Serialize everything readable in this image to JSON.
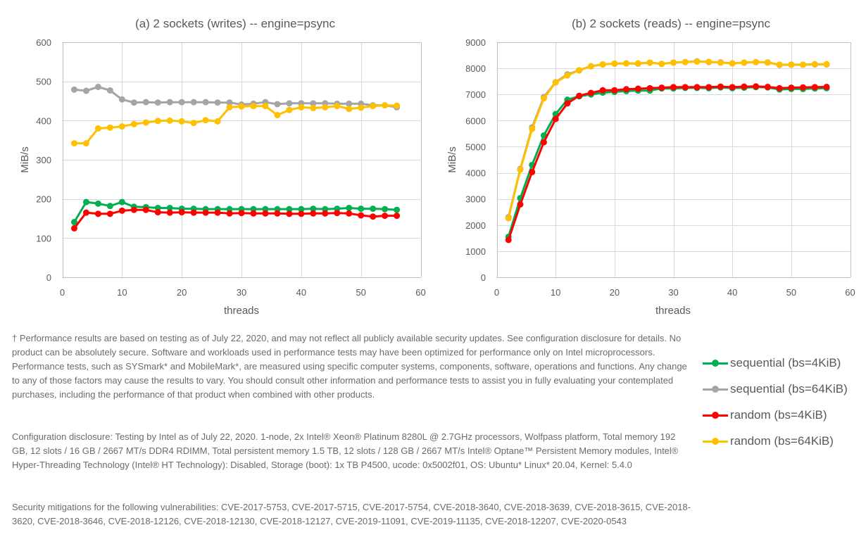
{
  "chart_data": [
    {
      "type": "line",
      "title": "(a) 2 sockets (writes) -- engine=psync",
      "xlabel": "threads",
      "ylabel": "MiB/s",
      "xlim": [
        0,
        60
      ],
      "ylim": [
        0,
        600
      ],
      "x_ticks": [
        0,
        10,
        20,
        30,
        40,
        50,
        60
      ],
      "y_ticks": [
        0,
        100,
        200,
        300,
        400,
        500,
        600
      ],
      "grid": true,
      "x": [
        2,
        4,
        6,
        8,
        10,
        12,
        14,
        16,
        18,
        20,
        22,
        24,
        26,
        28,
        30,
        32,
        34,
        36,
        38,
        40,
        42,
        44,
        46,
        48,
        50,
        52,
        54,
        56
      ],
      "series": [
        {
          "name": "sequential (bs=4KiB)",
          "color": "#00b050",
          "values": [
            141,
            192,
            188,
            182,
            192,
            180,
            179,
            177,
            177,
            175,
            175,
            174,
            174,
            174,
            174,
            174,
            174,
            174,
            174,
            174,
            175,
            174,
            175,
            177,
            175,
            175,
            174,
            172
          ]
        },
        {
          "name": "sequential (bs=64KiB)",
          "color": "#a5a5a5",
          "values": [
            479,
            476,
            486,
            477,
            454,
            446,
            447,
            446,
            447,
            447,
            447,
            447,
            446,
            446,
            441,
            443,
            447,
            442,
            444,
            444,
            444,
            444,
            443,
            443,
            443,
            439,
            439,
            434
          ]
        },
        {
          "name": "random (bs=4KiB)",
          "color": "#ff0000",
          "values": [
            125,
            165,
            162,
            162,
            170,
            172,
            172,
            166,
            165,
            166,
            165,
            165,
            165,
            163,
            164,
            163,
            163,
            163,
            162,
            162,
            163,
            163,
            164,
            163,
            158,
            155,
            157,
            157
          ]
        },
        {
          "name": "random (bs=64KiB)",
          "color": "#ffc000",
          "values": [
            342,
            342,
            380,
            382,
            385,
            391,
            395,
            399,
            400,
            398,
            394,
            401,
            398,
            434,
            436,
            437,
            437,
            414,
            427,
            434,
            432,
            434,
            437,
            430,
            433,
            437,
            439,
            438
          ]
        }
      ]
    },
    {
      "type": "line",
      "title": "(b) 2 sockets (reads) -- engine=psync",
      "xlabel": "threads",
      "ylabel": "MiB/s",
      "xlim": [
        0,
        60
      ],
      "ylim": [
        0,
        9000
      ],
      "x_ticks": [
        0,
        10,
        20,
        30,
        40,
        50,
        60
      ],
      "y_ticks": [
        0,
        1000,
        2000,
        3000,
        4000,
        5000,
        6000,
        7000,
        8000,
        9000
      ],
      "grid": true,
      "x": [
        2,
        4,
        6,
        8,
        10,
        12,
        14,
        16,
        18,
        20,
        22,
        24,
        26,
        28,
        30,
        32,
        34,
        36,
        38,
        40,
        42,
        44,
        46,
        48,
        50,
        52,
        54,
        56
      ],
      "series": [
        {
          "name": "sequential (bs=4KiB)",
          "color": "#00b050",
          "values": [
            1550,
            3030,
            4300,
            5430,
            6250,
            6800,
            6930,
            7000,
            7070,
            7100,
            7130,
            7150,
            7150,
            7230,
            7230,
            7250,
            7250,
            7240,
            7270,
            7240,
            7260,
            7280,
            7270,
            7190,
            7210,
            7210,
            7230,
            7240
          ]
        },
        {
          "name": "sequential (bs=64KiB)",
          "color": "#a5a5a5",
          "values": [
            2300,
            4150,
            5740,
            6900,
            7470,
            7770,
            7920,
            8080,
            8150,
            8180,
            8190,
            8180,
            8220,
            8170,
            8220,
            8240,
            8270,
            8240,
            8230,
            8190,
            8220,
            8240,
            8230,
            8130,
            8140,
            8140,
            8150,
            8150
          ]
        },
        {
          "name": "random (bs=4KiB)",
          "color": "#ff0000",
          "values": [
            1430,
            2790,
            4030,
            5170,
            6060,
            6660,
            6950,
            7060,
            7160,
            7160,
            7200,
            7220,
            7240,
            7260,
            7280,
            7280,
            7280,
            7280,
            7300,
            7280,
            7300,
            7310,
            7290,
            7240,
            7260,
            7270,
            7280,
            7290
          ]
        },
        {
          "name": "random (bs=64KiB)",
          "color": "#ffc000",
          "values": [
            2260,
            4120,
            5680,
            6850,
            7460,
            7730,
            7930,
            8080,
            8150,
            8180,
            8190,
            8190,
            8220,
            8170,
            8220,
            8240,
            8260,
            8250,
            8220,
            8190,
            8220,
            8240,
            8220,
            8140,
            8140,
            8140,
            8160,
            8160
          ]
        }
      ]
    }
  ],
  "legend": {
    "placement": "right-below-charts",
    "items": [
      {
        "label": "sequential (bs=4KiB)",
        "color": "#00b050"
      },
      {
        "label": "sequential (bs=64KiB)",
        "color": "#a5a5a5"
      },
      {
        "label": "random (bs=4KiB)",
        "color": "#ff0000"
      },
      {
        "label": "random (bs=64KiB)",
        "color": "#ffc000"
      }
    ]
  },
  "footnotes": {
    "performance": "† Performance results are based on testing as of July 22, 2020, and may not reflect all publicly available security updates. See configuration disclosure for details. No product can be absolutely secure. Software and workloads used in performance tests may have been optimized for performance only on Intel microprocessors. Performance tests, such as SYSmark* and MobileMark*, are measured using specific computer systems, components, software, operations and functions. Any change to any of those factors may cause the results to vary. You should consult other information and performance tests to assist you in fully evaluating your contemplated purchases, including the performance of that product when combined with other products.",
    "configuration": "Configuration disclosure: Testing by Intel as of July 22, 2020. 1-node, 2x Intel® Xeon® Platinum 8280L @ 2.7GHz processors, Wolfpass platform, Total memory 192 GB, 12 slots / 16 GB / 2667 MT/s DDR4 RDIMM, Total persistent memory 1.5 TB, 12 slots / 128 GB / 2667 MT/s Intel® Optane™ Persistent Memory modules, Intel® Hyper-Threading Technology (Intel® HT Technology): Disabled, Storage (boot): 1x TB P4500, ucode: 0x5002f01, OS: Ubuntu* Linux* 20.04, Kernel: 5.4.0",
    "security": "Security mitigations for the following vulnerabilities: CVE-2017-5753, CVE-2017-5715, CVE-2017-5754, CVE-2018-3640, CVE-2018-3639, CVE-2018-3615, CVE-2018-3620, CVE-2018-3646, CVE-2018-12126, CVE-2018-12130, CVE-2018-12127, CVE-2019-11091, CVE-2019-11135, CVE-2018-12207, CVE-2020-0543"
  }
}
